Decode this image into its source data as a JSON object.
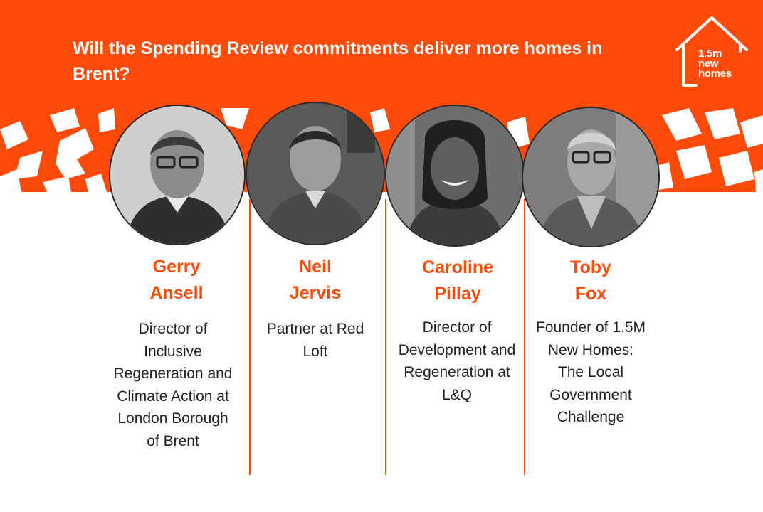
{
  "header": {
    "title": "Will the Spending Review commitments deliver more homes in Brent?",
    "background": "#ff4b0a"
  },
  "logo": {
    "icon": "house-outline-icon",
    "line1": "1.5m",
    "line2": "new",
    "line3": "homes"
  },
  "colors": {
    "accent": "#ff4b0a",
    "text": "#222222"
  },
  "speakers": [
    {
      "name": "Gerry\nAnsell",
      "role": "Director of\nInclusive\nRegeneration and\nClimate Action at\nLondon Borough\nof Brent"
    },
    {
      "name": "Neil\nJervis",
      "role": "Partner at Red\nLoft"
    },
    {
      "name": "Caroline\nPillay",
      "role": "Director of\nDevelopment and\nRegeneration at\nL&Q"
    },
    {
      "name": "Toby\nFox",
      "role": "Founder of 1.5M\nNew Homes:\nThe Local\nGovernment\nChallenge"
    }
  ]
}
